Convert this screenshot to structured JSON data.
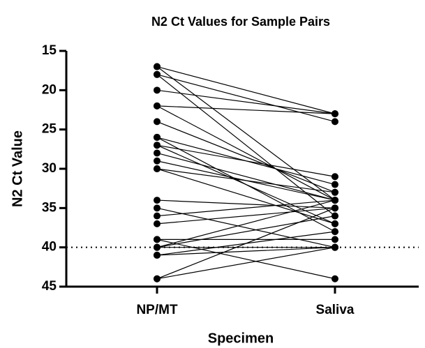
{
  "chart_data": {
    "type": "paired",
    "title": "N2 Ct Values for Sample Pairs",
    "xlabel": "Specimen",
    "ylabel": "N2 Ct Value",
    "categories": [
      "NP/MT",
      "Saliva"
    ],
    "ylim": [
      45,
      15
    ],
    "yticks": [
      15,
      20,
      25,
      30,
      35,
      40,
      45
    ],
    "reference_line": 40,
    "color": "#000000",
    "series": [
      {
        "values": [
          17,
          23
        ]
      },
      {
        "values": [
          17,
          34
        ]
      },
      {
        "values": [
          18,
          24
        ]
      },
      {
        "values": [
          18,
          36
        ]
      },
      {
        "values": [
          20,
          23
        ]
      },
      {
        "values": [
          22,
          23
        ]
      },
      {
        "values": [
          22,
          34
        ]
      },
      {
        "values": [
          24,
          33
        ]
      },
      {
        "values": [
          26,
          32
        ]
      },
      {
        "values": [
          26,
          38
        ]
      },
      {
        "values": [
          27,
          31
        ]
      },
      {
        "values": [
          27,
          37
        ]
      },
      {
        "values": [
          28,
          34
        ]
      },
      {
        "values": [
          29,
          34
        ]
      },
      {
        "values": [
          30,
          33
        ]
      },
      {
        "values": [
          30,
          37
        ]
      },
      {
        "values": [
          34,
          35
        ]
      },
      {
        "values": [
          35,
          40
        ]
      },
      {
        "values": [
          36,
          34
        ]
      },
      {
        "values": [
          37,
          35
        ]
      },
      {
        "values": [
          39,
          39
        ]
      },
      {
        "values": [
          39,
          44
        ]
      },
      {
        "values": [
          40,
          40
        ]
      },
      {
        "values": [
          40,
          36
        ]
      },
      {
        "values": [
          40,
          34
        ]
      },
      {
        "values": [
          41,
          40
        ]
      },
      {
        "values": [
          41,
          38
        ]
      },
      {
        "values": [
          44,
          35
        ]
      },
      {
        "values": [
          44,
          40
        ]
      }
    ]
  }
}
